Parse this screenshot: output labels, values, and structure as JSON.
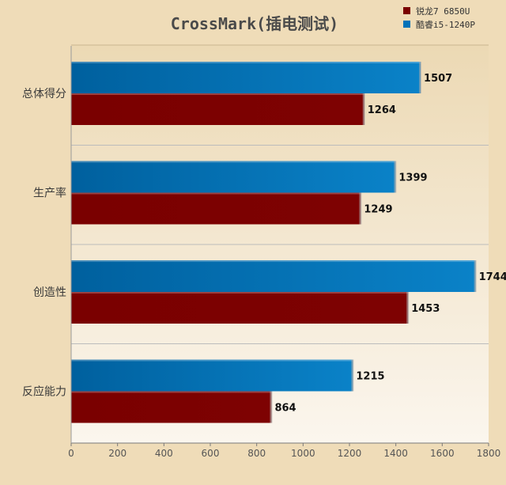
{
  "chart_data": {
    "type": "bar",
    "orientation": "horizontal",
    "title": "CrossMark(插电测试)",
    "categories": [
      "总体得分",
      "生产率",
      "创造性",
      "反应能力"
    ],
    "series": [
      {
        "name": "酷睿i5-1240P",
        "color": "#0072b8",
        "values": [
          1507,
          1399,
          1744,
          1215
        ]
      },
      {
        "name": "锐龙7 6850U",
        "color": "#7a0000",
        "values": [
          1264,
          1249,
          1453,
          864
        ]
      }
    ],
    "xlim": [
      0,
      1800
    ],
    "xticks": [
      0,
      200,
      400,
      600,
      800,
      1000,
      1200,
      1400,
      1600,
      1800
    ],
    "grid": true,
    "legend": {
      "placement": "top-right",
      "entries": [
        {
          "name": "锐龙7 6850U",
          "color": "#7a0000"
        },
        {
          "name": "酷睿i5-1240P",
          "color": "#0072b8"
        }
      ]
    }
  }
}
